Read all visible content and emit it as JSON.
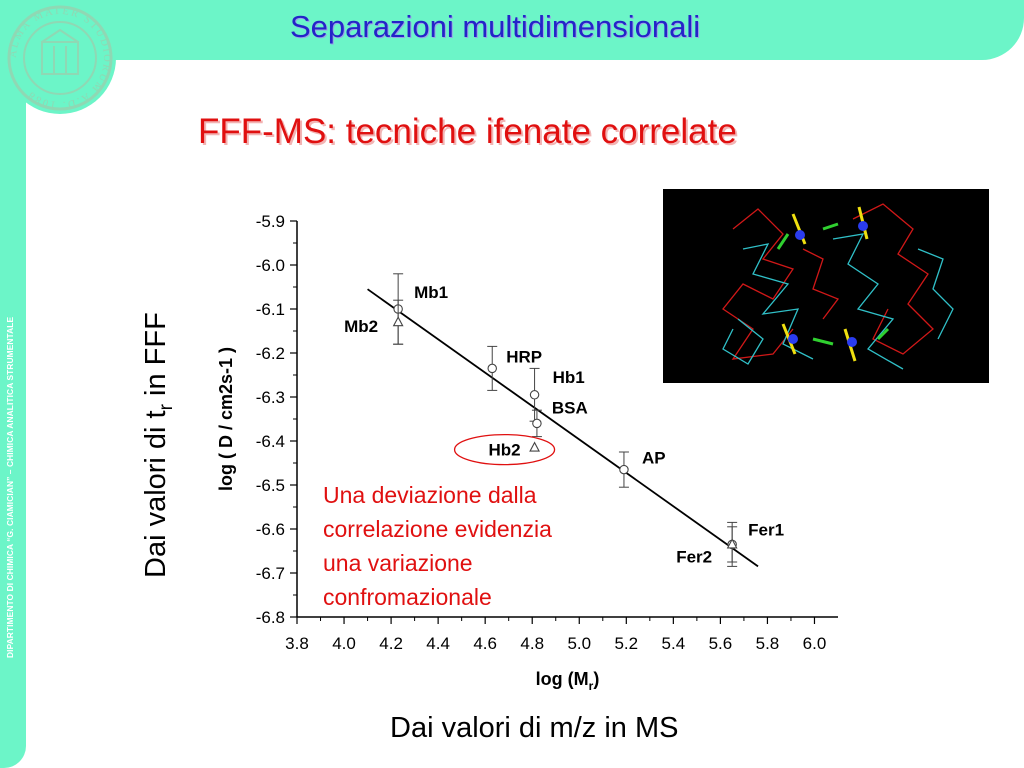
{
  "header": {
    "title": "Separazioni multidimensionali"
  },
  "logo": {
    "text": "ALMA MATER STUDIORUM A.D. 1088"
  },
  "sidebar": {
    "text": "DIPARTIMENTO DI CHIMICA “G. CIAMICIAN” – CHIMICA ANALITICA STRUMENTALE"
  },
  "slide": {
    "title": "FFF-MS: tecniche ifenate correlate",
    "left_caption": "Dai valori di  t",
    "left_caption_sub": "r",
    "left_caption_tail": " in FFF",
    "bottom_caption": "Dai valori di m/z in MS",
    "note_lines": [
      "Una deviazione dalla",
      "correlazione evidenzia",
      "una variazione",
      "confromazionale"
    ]
  },
  "colors": {
    "band": "#6cf5c8",
    "header_text": "#2424c8",
    "accent_red": "#e01010"
  },
  "chart_data": {
    "type": "scatter",
    "title": "",
    "xlabel": "log (M",
    "xlabel_sub": "r",
    "xlabel_tail": ")",
    "ylabel": "log ( D / cm2s-1 )",
    "xlim": [
      3.8,
      6.1
    ],
    "ylim": [
      -6.8,
      -5.9
    ],
    "x_ticks": [
      "3.8",
      "4.0",
      "4.2",
      "4.4",
      "4.6",
      "4.8",
      "5.0",
      "5.2",
      "5.4",
      "5.6",
      "5.8",
      "6.0"
    ],
    "y_ticks": [
      "-5.9",
      "-6.0",
      "-6.1",
      "-6.2",
      "-6.3",
      "-6.4",
      "-6.5",
      "-6.6",
      "-6.7",
      "-6.8"
    ],
    "points": [
      {
        "label": "Mb1",
        "x": 4.23,
        "y": -6.1,
        "err": 0.08,
        "marker": "circle"
      },
      {
        "label": "Mb2",
        "x": 4.23,
        "y": -6.13,
        "err": 0.05,
        "marker": "triangle"
      },
      {
        "label": "HRP",
        "x": 4.63,
        "y": -6.235,
        "err": 0.05,
        "marker": "circle"
      },
      {
        "label": "Hb1",
        "x": 4.81,
        "y": -6.295,
        "err": 0.06,
        "marker": "circle"
      },
      {
        "label": "BSA",
        "x": 4.82,
        "y": -6.36,
        "err": 0.03,
        "marker": "circle"
      },
      {
        "label": "Hb2",
        "x": 4.81,
        "y": -6.415,
        "err": 0.01,
        "marker": "triangle"
      },
      {
        "label": "AP",
        "x": 5.19,
        "y": -6.465,
        "err": 0.04,
        "marker": "circle"
      },
      {
        "label": "Fer1",
        "x": 5.65,
        "y": -6.635,
        "err": 0.04,
        "marker": "circle"
      },
      {
        "label": "Fer2",
        "x": 5.65,
        "y": -6.635,
        "err": 0.05,
        "marker": "triangle"
      }
    ],
    "fit_line": {
      "x": [
        4.1,
        5.76
      ],
      "y": [
        -6.055,
        -6.685
      ]
    },
    "highlight": "Hb2"
  }
}
